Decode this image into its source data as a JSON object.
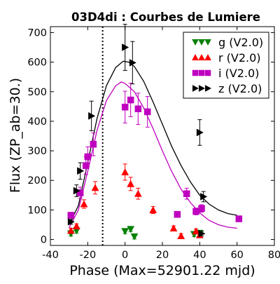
{
  "chart_data": {
    "type": "scatter",
    "title": "03D4di : Courbes de Lumiere",
    "xlabel": "Phase (Max=52901.22 mjd)",
    "ylabel": "Flux (ZP_ab=30.)",
    "xlim": [
      -40,
      80
    ],
    "ylim": [
      -20,
      720
    ],
    "xticks": [
      "-40",
      "-20",
      "0",
      "20",
      "40",
      "60",
      "80"
    ],
    "yticks": [
      "0",
      "100",
      "200",
      "300",
      "400",
      "500",
      "600",
      "700"
    ],
    "grid": false,
    "legend_position": "top-right",
    "reference_line_x": -12,
    "series": [
      {
        "name": "g (V2.0)",
        "color": "#008000",
        "marker": "triangle-down",
        "points": [
          {
            "x": -29,
            "y": 20
          },
          {
            "x": -26,
            "y": 30
          },
          {
            "x": 0,
            "y": 28
          },
          {
            "x": 3,
            "y": 35
          },
          {
            "x": 5,
            "y": 10
          },
          {
            "x": 37,
            "y": 18
          },
          {
            "x": 40,
            "y": 22
          }
        ]
      },
      {
        "name": "r (V2.0)",
        "color": "#ff0000",
        "marker": "triangle-up",
        "points": [
          {
            "x": -29,
            "y": 30
          },
          {
            "x": -26,
            "y": 45
          },
          {
            "x": -22,
            "y": 120
          },
          {
            "x": -16,
            "y": 175
          },
          {
            "x": 0,
            "y": 228
          },
          {
            "x": 3,
            "y": 188
          },
          {
            "x": 7,
            "y": 155
          },
          {
            "x": 15,
            "y": 100
          },
          {
            "x": 26,
            "y": 38
          },
          {
            "x": 30,
            "y": 12
          },
          {
            "x": 38,
            "y": 28
          },
          {
            "x": 40,
            "y": 15
          }
        ]
      },
      {
        "name": "i (V2.0)",
        "color": "#bf00bf",
        "marker": "square",
        "points": [
          {
            "x": -29,
            "y": 82
          },
          {
            "x": -24,
            "y": 158
          },
          {
            "x": -21,
            "y": 250
          },
          {
            "x": -20,
            "y": 280
          },
          {
            "x": -17,
            "y": 322
          },
          {
            "x": 0,
            "y": 448
          },
          {
            "x": 3,
            "y": 472
          },
          {
            "x": 7,
            "y": 442
          },
          {
            "x": 12,
            "y": 432
          },
          {
            "x": 28,
            "y": 85
          },
          {
            "x": 33,
            "y": 155
          },
          {
            "x": 38,
            "y": 95
          },
          {
            "x": 41,
            "y": 105
          },
          {
            "x": 61,
            "y": 70
          }
        ],
        "fit": [
          {
            "x": -30,
            "y": 40
          },
          {
            "x": -25,
            "y": 100
          },
          {
            "x": -20,
            "y": 230
          },
          {
            "x": -15,
            "y": 370
          },
          {
            "x": -10,
            "y": 470
          },
          {
            "x": -5,
            "y": 520
          },
          {
            "x": -2,
            "y": 533
          },
          {
            "x": 0,
            "y": 528
          },
          {
            "x": 5,
            "y": 500
          },
          {
            "x": 10,
            "y": 445
          },
          {
            "x": 15,
            "y": 375
          },
          {
            "x": 20,
            "y": 300
          },
          {
            "x": 25,
            "y": 230
          },
          {
            "x": 30,
            "y": 170
          },
          {
            "x": 35,
            "y": 125
          },
          {
            "x": 40,
            "y": 90
          },
          {
            "x": 45,
            "y": 65
          },
          {
            "x": 50,
            "y": 50
          },
          {
            "x": 55,
            "y": 42
          },
          {
            "x": 60,
            "y": 38
          }
        ]
      },
      {
        "name": "z (V2.0)",
        "color": "#000000",
        "marker": "triangle-right",
        "points": [
          {
            "x": -29,
            "y": 60
          },
          {
            "x": -26,
            "y": 165
          },
          {
            "x": -24,
            "y": 232
          },
          {
            "x": -18,
            "y": 418
          },
          {
            "x": 0,
            "y": 650
          },
          {
            "x": 4,
            "y": 598
          },
          {
            "x": 40,
            "y": 362
          },
          {
            "x": 42,
            "y": 145
          },
          {
            "x": 41,
            "y": 20
          }
        ],
        "fit": [
          {
            "x": -30,
            "y": 50
          },
          {
            "x": -25,
            "y": 115
          },
          {
            "x": -20,
            "y": 260
          },
          {
            "x": -15,
            "y": 410
          },
          {
            "x": -10,
            "y": 520
          },
          {
            "x": -5,
            "y": 582
          },
          {
            "x": -1,
            "y": 603
          },
          {
            "x": 2,
            "y": 600
          },
          {
            "x": 5,
            "y": 585
          },
          {
            "x": 10,
            "y": 535
          },
          {
            "x": 15,
            "y": 465
          },
          {
            "x": 20,
            "y": 390
          },
          {
            "x": 25,
            "y": 315
          },
          {
            "x": 30,
            "y": 250
          },
          {
            "x": 35,
            "y": 195
          },
          {
            "x": 40,
            "y": 150
          },
          {
            "x": 45,
            "y": 120
          },
          {
            "x": 50,
            "y": 100
          },
          {
            "x": 55,
            "y": 88
          },
          {
            "x": 60,
            "y": 82
          }
        ]
      }
    ]
  }
}
